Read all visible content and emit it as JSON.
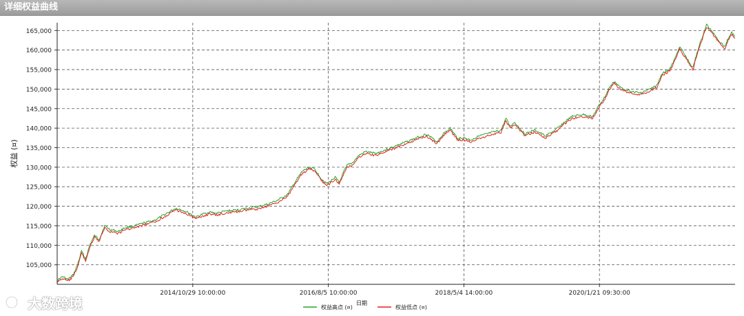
{
  "window": {
    "title": "详细权益曲线"
  },
  "watermark": {
    "text": "大数跨境"
  },
  "chart_data": {
    "type": "line",
    "title": "",
    "xlabel": "日期",
    "ylabel": "权益 (¤)",
    "ylim": [
      100000,
      167000
    ],
    "grid": true,
    "legend_position": "bottom-center",
    "yticks": [
      105000,
      110000,
      115000,
      120000,
      125000,
      130000,
      135000,
      140000,
      145000,
      150000,
      155000,
      160000,
      165000
    ],
    "ytick_labels": [
      "105,000",
      "110,000",
      "115,000",
      "120,000",
      "125,000",
      "130,000",
      "135,000",
      "140,000",
      "145,000",
      "150,000",
      "155,000",
      "160,000",
      "165,000"
    ],
    "x_index_range": [
      0,
      1000
    ],
    "xticks": [
      {
        "index": 200,
        "label": "2014/10/29 10:00:00"
      },
      {
        "index": 400,
        "label": "2016/8/5 10:00:00"
      },
      {
        "index": 600,
        "label": "2018/5/4 14:00:00"
      },
      {
        "index": 800,
        "label": "2020/1/21 09:30:00"
      }
    ],
    "series": [
      {
        "name": "权益高点 (¤)",
        "color": "#2ca02c",
        "x": [
          0,
          8,
          16,
          24,
          30,
          36,
          42,
          48,
          55,
          62,
          70,
          78,
          85,
          90,
          100,
          115,
          130,
          145,
          160,
          175,
          185,
          195,
          205,
          215,
          225,
          235,
          250,
          265,
          280,
          295,
          310,
          325,
          340,
          352,
          362,
          372,
          380,
          390,
          398,
          404,
          410,
          416,
          422,
          428,
          435,
          445,
          455,
          470,
          485,
          500,
          515,
          530,
          545,
          560,
          572,
          580,
          590,
          600,
          610,
          620,
          640,
          655,
          662,
          668,
          675,
          690,
          705,
          720,
          735,
          748,
          760,
          775,
          790,
          800,
          808,
          815,
          822,
          830,
          845,
          860,
          875,
          885,
          892,
          898,
          905,
          912,
          918,
          925,
          932,
          938,
          945,
          952,
          958,
          965,
          972,
          978,
          985,
          990,
          995,
          1000
        ],
        "y": [
          101000,
          102000,
          101200,
          102500,
          105000,
          108500,
          106500,
          110000,
          112500,
          111500,
          115000,
          114000,
          113800,
          113500,
          114500,
          115000,
          115800,
          116500,
          118000,
          119500,
          119000,
          118200,
          117200,
          118000,
          118500,
          118200,
          118800,
          119000,
          119500,
          119800,
          120500,
          121500,
          123000,
          126500,
          129000,
          130000,
          129500,
          127000,
          125800,
          126500,
          127500,
          126000,
          128500,
          130500,
          131000,
          133000,
          134000,
          133500,
          134500,
          135500,
          136500,
          137500,
          138500,
          136500,
          139000,
          140000,
          137500,
          137500,
          137000,
          137800,
          138800,
          139500,
          142500,
          140500,
          141500,
          138500,
          139500,
          138000,
          139500,
          141500,
          143000,
          143500,
          143000,
          146000,
          148000,
          150500,
          152000,
          150500,
          149500,
          149000,
          150000,
          151000,
          154000,
          154500,
          155500,
          158000,
          161000,
          159000,
          157000,
          155500,
          160000,
          163500,
          166500,
          165000,
          163500,
          162000,
          161000,
          163000,
          164500,
          163500
        ]
      },
      {
        "name": "权益低点 (¤)",
        "color": "#e0201b",
        "x": [
          0,
          8,
          16,
          24,
          30,
          36,
          42,
          48,
          55,
          62,
          70,
          78,
          85,
          90,
          100,
          115,
          130,
          145,
          160,
          175,
          185,
          195,
          205,
          215,
          225,
          235,
          250,
          265,
          280,
          295,
          310,
          325,
          340,
          352,
          362,
          372,
          380,
          390,
          398,
          404,
          410,
          416,
          422,
          428,
          435,
          445,
          455,
          470,
          485,
          500,
          515,
          530,
          545,
          560,
          572,
          580,
          590,
          600,
          610,
          620,
          640,
          655,
          662,
          668,
          675,
          690,
          705,
          720,
          735,
          748,
          760,
          775,
          790,
          800,
          808,
          815,
          822,
          830,
          845,
          860,
          875,
          885,
          892,
          898,
          905,
          912,
          918,
          925,
          932,
          938,
          945,
          952,
          958,
          965,
          972,
          978,
          985,
          990,
          995,
          1000
        ],
        "y": [
          100500,
          101500,
          100800,
          102000,
          104500,
          108000,
          106000,
          109500,
          112000,
          111000,
          114500,
          113500,
          113300,
          113000,
          114000,
          114500,
          115300,
          116000,
          117500,
          119000,
          118500,
          117700,
          116700,
          117500,
          118000,
          117700,
          118300,
          118500,
          119000,
          119300,
          120000,
          121000,
          122500,
          126000,
          128500,
          129500,
          129000,
          126500,
          125300,
          126000,
          127000,
          125500,
          128000,
          130000,
          130500,
          132500,
          133500,
          133000,
          134000,
          135000,
          136000,
          137000,
          138000,
          136000,
          138500,
          139500,
          137000,
          137000,
          136500,
          137300,
          138300,
          139000,
          142000,
          140000,
          141000,
          138000,
          139000,
          137500,
          139000,
          141000,
          142500,
          143000,
          142500,
          145500,
          147500,
          150000,
          151500,
          150000,
          149000,
          148500,
          149500,
          150500,
          153500,
          154000,
          155000,
          157500,
          160500,
          158500,
          156500,
          155000,
          159500,
          163000,
          166000,
          164500,
          163000,
          161500,
          160500,
          162500,
          164000,
          163000
        ]
      }
    ]
  }
}
